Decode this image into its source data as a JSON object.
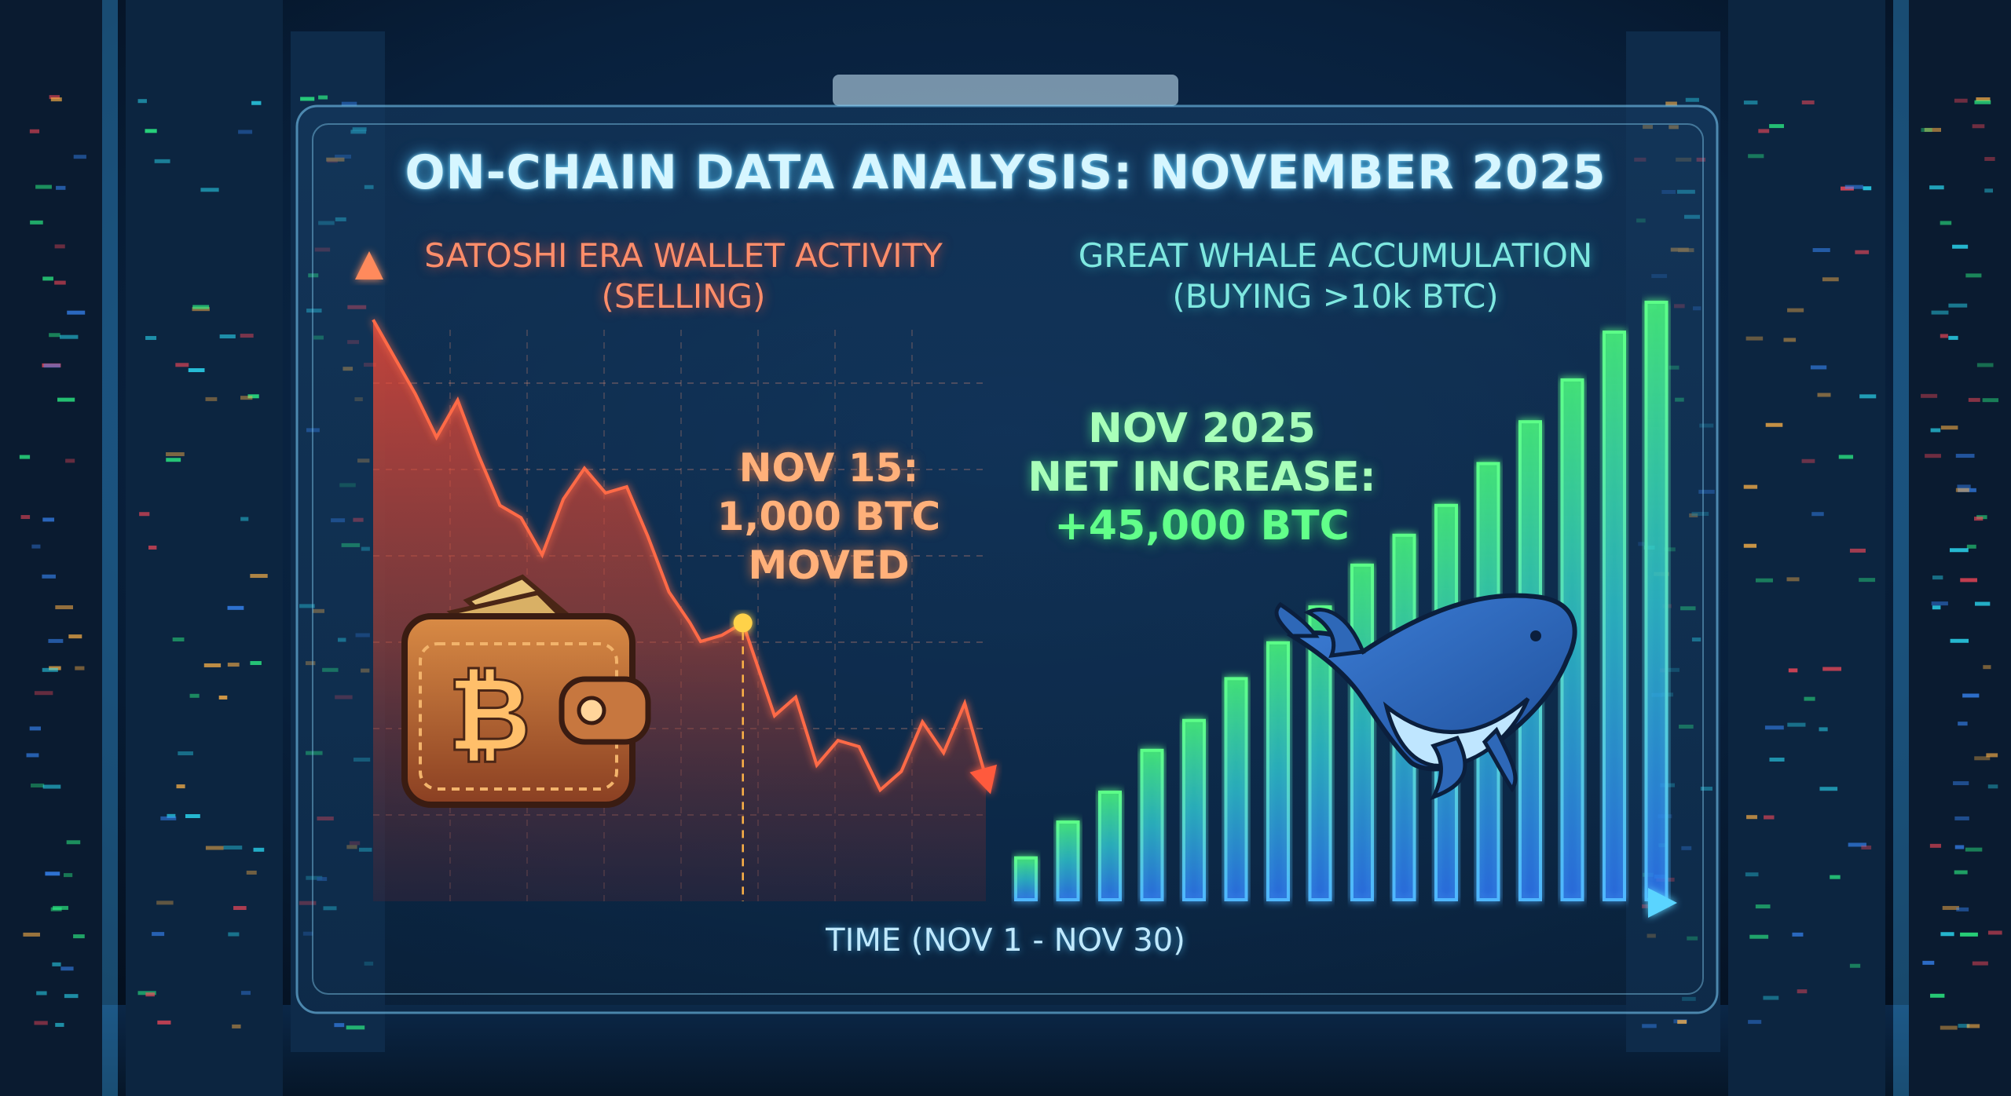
{
  "page_title": "ON-CHAIN DATA ANALYSIS: NOVEMBER 2025",
  "left_panel": {
    "title_line1": "SATOSHI ERA WALLET ACTIVITY",
    "title_line2": "(SELLING)",
    "annotation_line1": "NOV 15:",
    "annotation_line2": "1,000 BTC",
    "annotation_line3": "MOVED",
    "accent_color": "#ff5a3c",
    "icon": "bitcoin-wallet-icon"
  },
  "right_panel": {
    "title_line1": "GREAT WHALE ACCUMULATION",
    "title_line2": "(BUYING >10k BTC)",
    "annotation_line1": "NOV 2025",
    "annotation_line2": "NET INCREASE:",
    "annotation_line3": "+45,000 BTC",
    "accent_color": "#3cf27a",
    "icon": "whale-icon"
  },
  "x_axis_label": "TIME (NOV 1 - NOV 30)",
  "chart_data": [
    {
      "type": "area",
      "ylim": [
        0,
        100
      ],
      "xlim": [
        0,
        29
      ],
      "points": [
        [
          0,
          94
        ],
        [
          1,
          88
        ],
        [
          2,
          82
        ],
        [
          3,
          75
        ],
        [
          4,
          81
        ],
        [
          5,
          72
        ],
        [
          6,
          64
        ],
        [
          7,
          62
        ],
        [
          8,
          56
        ],
        [
          9,
          65
        ],
        [
          10,
          70
        ],
        [
          11,
          66
        ],
        [
          12,
          67
        ],
        [
          13,
          59
        ],
        [
          14,
          50
        ],
        [
          15,
          45
        ],
        [
          15.5,
          42
        ],
        [
          16.5,
          43
        ],
        [
          17.5,
          45
        ],
        [
          18,
          40
        ],
        [
          19,
          30
        ],
        [
          20,
          33
        ],
        [
          21,
          22
        ],
        [
          22,
          26
        ],
        [
          23,
          25
        ],
        [
          24,
          18
        ],
        [
          25,
          21
        ],
        [
          26,
          29
        ],
        [
          27,
          24
        ],
        [
          28,
          32
        ],
        [
          29,
          20
        ]
      ],
      "highlight_point": [
        17.5,
        45
      ],
      "grid": true
    },
    {
      "type": "bar",
      "ylim": [
        0,
        100
      ],
      "values": [
        7,
        13,
        18,
        25,
        30,
        37,
        43,
        49,
        56,
        61,
        66,
        73,
        80,
        87,
        95,
        100
      ],
      "grid": false
    }
  ],
  "colors": {
    "panel_border": "#7fd4ff",
    "title": "#d6f6ff",
    "selling": "#ff5a3c",
    "buying_bottom": "#3aa8ff",
    "buying_top": "#4dff7a",
    "axis": "#ff9060",
    "axis_right": "#5ad4ff"
  }
}
